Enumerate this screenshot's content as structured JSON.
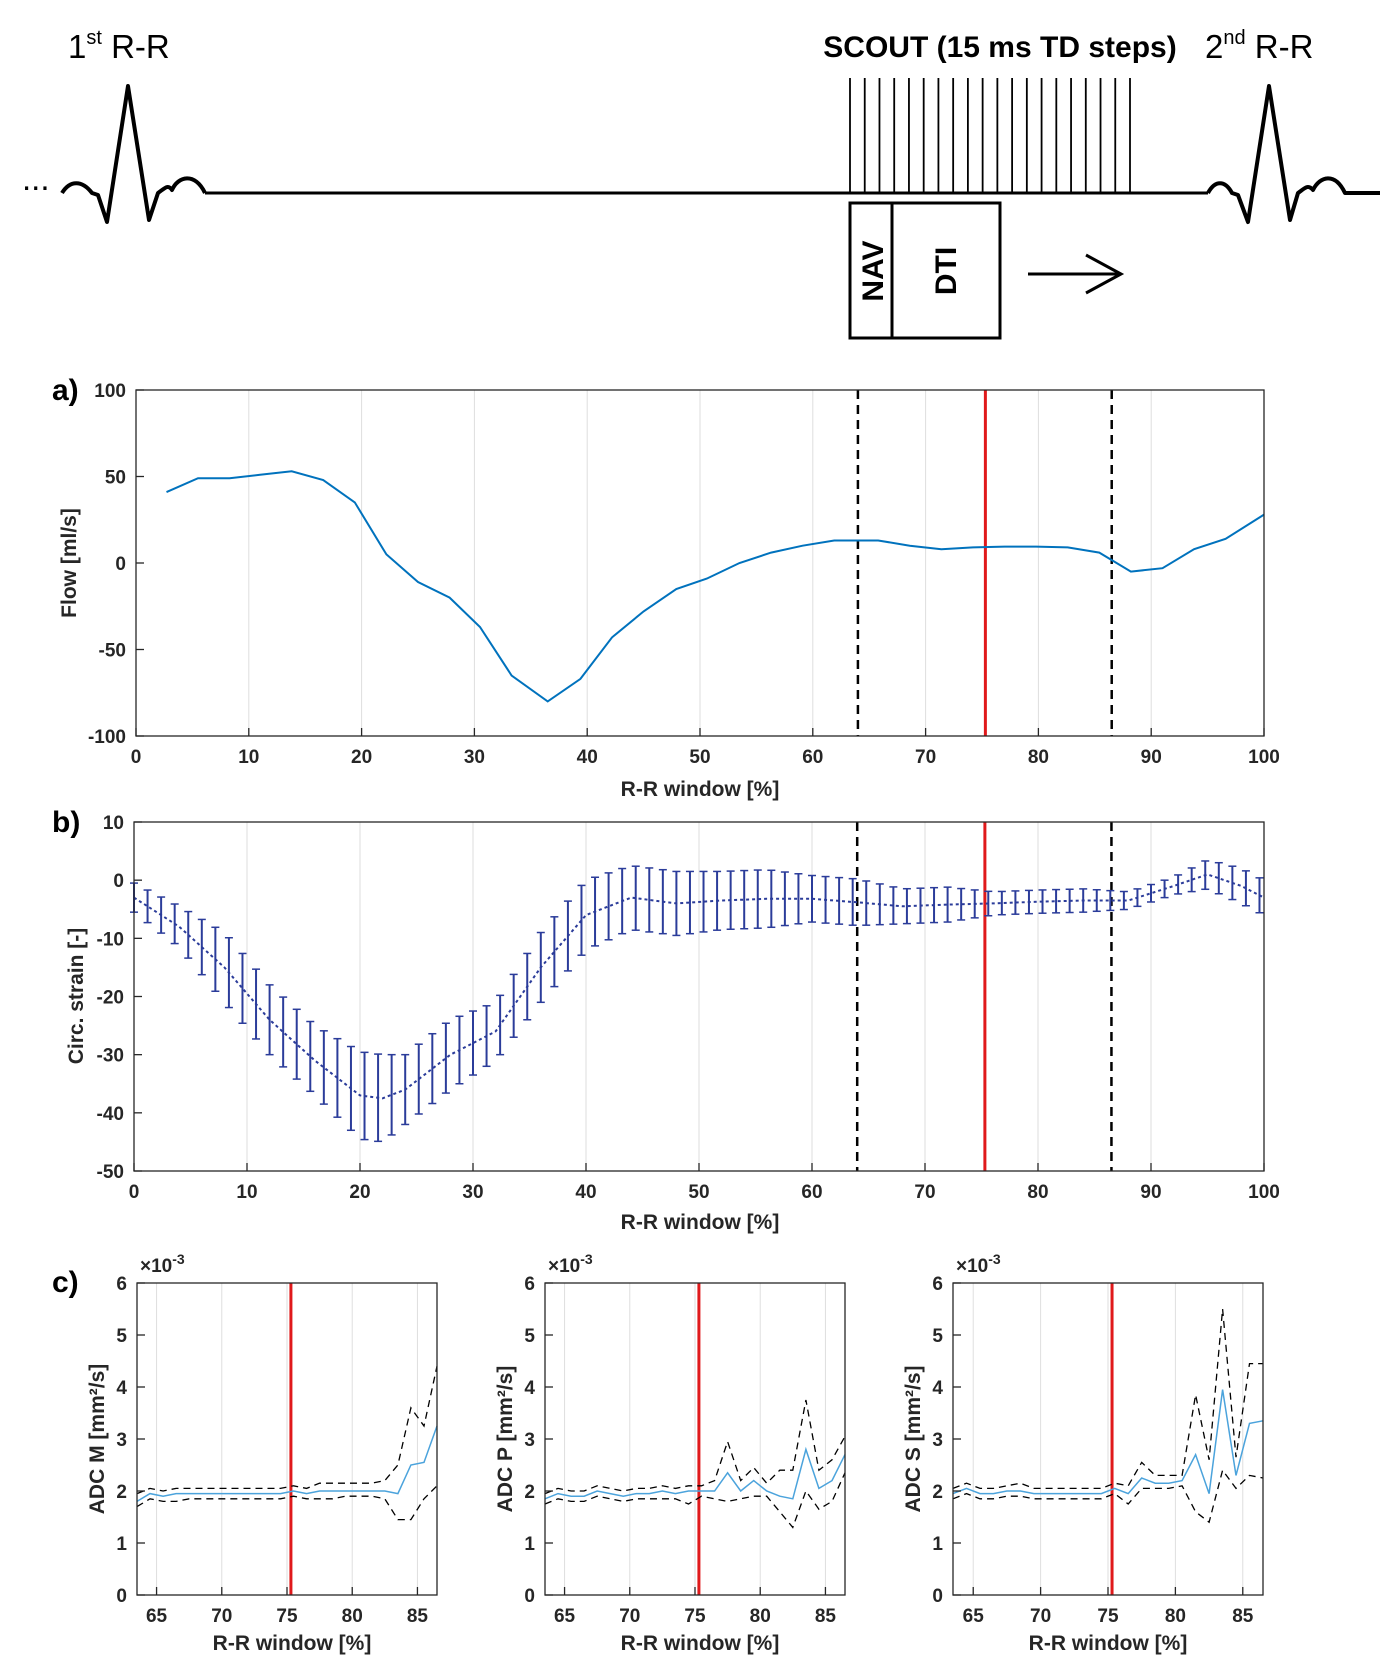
{
  "diagram": {
    "first_rr": {
      "main": "1",
      "sup": "st",
      "rest": " R-R"
    },
    "second_rr": {
      "main": "2",
      "sup": "nd",
      "rest": " R-R"
    },
    "scout_label": "SCOUT (15 ms TD steps)",
    "nav_label": "NAV",
    "dti_label": "DTI",
    "ellipsis": "..."
  },
  "colors": {
    "flow": "#0072bd",
    "strain": "#2b3c9a",
    "adc_mean": "#4ba3dc",
    "red_marker": "#e0191b",
    "dashed": "#000000",
    "grid": "#dedede"
  },
  "chart_data": [
    {
      "id": "a",
      "panel_label": "a)",
      "type": "line",
      "xlabel": "R-R window [%]",
      "ylabel": "Flow [ml/s]",
      "xlim": [
        0,
        100
      ],
      "ylim": [
        -100,
        100
      ],
      "xticks": [
        0,
        10,
        20,
        30,
        40,
        50,
        60,
        70,
        80,
        90,
        100
      ],
      "yticks": [
        -100,
        -50,
        0,
        50,
        100
      ],
      "vlines": [
        {
          "x": 64,
          "style": "dashed"
        },
        {
          "x": 75.3,
          "style": "red"
        },
        {
          "x": 86.5,
          "style": "dashed"
        }
      ],
      "series": [
        {
          "name": "Flow",
          "x": [
            2.7,
            5.5,
            8.3,
            11.0,
            13.8,
            16.6,
            19.4,
            22.2,
            25.0,
            27.8,
            30.5,
            33.3,
            36.5,
            39.4,
            42.2,
            45.0,
            47.9,
            50.6,
            53.5,
            56.3,
            59.1,
            61.9,
            64.7,
            65.8,
            68.6,
            71.4,
            74.2,
            77.0,
            79.8,
            82.6,
            85.4,
            88.2,
            91.0,
            93.8,
            96.6,
            100.0
          ],
          "y": [
            41,
            49,
            49,
            51,
            53,
            48,
            35,
            5,
            -11,
            -20,
            -37,
            -65,
            -80,
            -67,
            -43,
            -28,
            -15,
            -9,
            0,
            6,
            10,
            13,
            13,
            13,
            10,
            8,
            9,
            9.5,
            9.5,
            9,
            6,
            -5,
            -3,
            8,
            14,
            28
          ]
        }
      ]
    },
    {
      "id": "b",
      "panel_label": "b)",
      "type": "line",
      "xlabel": "R-R window [%]",
      "ylabel": "Circ. strain [-]",
      "xlim": [
        0,
        100
      ],
      "ylim": [
        -50,
        10
      ],
      "xticks": [
        0,
        10,
        20,
        30,
        40,
        50,
        60,
        70,
        80,
        90,
        100
      ],
      "yticks": [
        -50,
        -40,
        -30,
        -20,
        -10,
        0,
        10
      ],
      "vlines": [
        {
          "x": 64,
          "style": "dashed"
        },
        {
          "x": 75.3,
          "style": "red"
        },
        {
          "x": 86.5,
          "style": "dashed"
        }
      ],
      "series": [
        {
          "name": "Mean ± SD",
          "x": [
            0,
            4,
            8,
            12,
            16,
            20,
            22,
            24,
            28,
            32,
            36,
            40,
            44,
            48,
            52,
            56,
            60,
            64,
            68,
            72,
            76,
            80,
            84,
            88,
            92,
            95,
            98,
            100
          ],
          "y": [
            -3,
            -8,
            -15,
            -24,
            -31,
            -37,
            -37.5,
            -36,
            -30,
            -26,
            -15,
            -6,
            -3,
            -4,
            -3.5,
            -3.2,
            -3.2,
            -3.8,
            -4.5,
            -4.2,
            -4,
            -3.7,
            -3.5,
            -3.5,
            -1,
            1,
            -1,
            -3
          ],
          "sd": [
            2.5,
            3.5,
            6,
            6,
            6,
            7.5,
            7.5,
            6,
            6,
            5,
            6,
            6,
            5.5,
            5.5,
            5,
            5,
            4,
            4,
            3,
            3,
            2,
            2,
            2,
            1.5,
            1.5,
            2.5,
            3,
            3
          ]
        }
      ]
    },
    {
      "id": "c1",
      "panel_label": "c)",
      "type": "line",
      "xlabel": "R-R window [%]",
      "ylabel": "ADC M [mm²/s]",
      "exponent": "×10",
      "exponent_power": "-3",
      "xlim": [
        63.5,
        86.5
      ],
      "ylim": [
        0,
        6
      ],
      "xticks": [
        65,
        70,
        75,
        80,
        85
      ],
      "yticks": [
        0,
        1,
        2,
        3,
        4,
        5,
        6
      ],
      "vlines": [
        {
          "x": 75.3,
          "style": "red"
        }
      ],
      "x": [
        63.5,
        64.5,
        65.5,
        66.5,
        67.5,
        68.5,
        69.5,
        70.5,
        71.5,
        72.5,
        73.5,
        74.5,
        75.5,
        76.5,
        77.5,
        78.5,
        79.5,
        80.5,
        81.5,
        82.5,
        83.5,
        84.5,
        85.5,
        86.5
      ],
      "mean": [
        1.8,
        1.95,
        1.9,
        1.95,
        1.95,
        1.95,
        1.95,
        1.95,
        1.95,
        1.95,
        1.95,
        1.95,
        2.0,
        1.95,
        2.0,
        2.0,
        2.0,
        2.0,
        2.0,
        2.0,
        1.95,
        2.5,
        2.55,
        3.25
      ],
      "upper": [
        1.95,
        2.05,
        2.0,
        2.05,
        2.05,
        2.05,
        2.05,
        2.05,
        2.05,
        2.05,
        2.05,
        2.05,
        2.1,
        2.05,
        2.15,
        2.15,
        2.15,
        2.15,
        2.15,
        2.2,
        2.5,
        3.6,
        3.25,
        4.4
      ],
      "lower": [
        1.7,
        1.85,
        1.8,
        1.8,
        1.85,
        1.85,
        1.85,
        1.85,
        1.85,
        1.85,
        1.85,
        1.85,
        1.9,
        1.85,
        1.85,
        1.85,
        1.9,
        1.9,
        1.9,
        1.85,
        1.45,
        1.45,
        1.85,
        2.1
      ]
    },
    {
      "id": "c2",
      "panel_label": "",
      "type": "line",
      "xlabel": "R-R window [%]",
      "ylabel": "ADC P [mm²/s]",
      "exponent": "×10",
      "exponent_power": "-3",
      "xlim": [
        63.5,
        86.5
      ],
      "ylim": [
        0,
        6
      ],
      "xticks": [
        65,
        70,
        75,
        80,
        85
      ],
      "yticks": [
        0,
        1,
        2,
        3,
        4,
        5,
        6
      ],
      "vlines": [
        {
          "x": 75.3,
          "style": "red"
        }
      ],
      "x": [
        63.5,
        64.5,
        65.5,
        66.5,
        67.5,
        68.5,
        69.5,
        70.5,
        71.5,
        72.5,
        73.5,
        74.5,
        75.5,
        76.5,
        77.5,
        78.5,
        79.5,
        80.5,
        81.5,
        82.5,
        83.5,
        84.5,
        85.5,
        86.5
      ],
      "mean": [
        1.85,
        1.95,
        1.9,
        1.9,
        2.0,
        1.95,
        1.9,
        1.95,
        1.95,
        2.0,
        1.95,
        2.0,
        2.0,
        2.0,
        2.35,
        2.0,
        2.2,
        2.0,
        1.9,
        1.85,
        2.8,
        2.05,
        2.2,
        2.7
      ],
      "upper": [
        1.95,
        2.05,
        2.0,
        2.0,
        2.1,
        2.05,
        2.0,
        2.05,
        2.05,
        2.1,
        2.05,
        2.1,
        2.1,
        2.2,
        2.95,
        2.2,
        2.45,
        2.15,
        2.4,
        2.4,
        3.75,
        2.4,
        2.6,
        3.05
      ],
      "lower": [
        1.75,
        1.85,
        1.8,
        1.8,
        1.9,
        1.85,
        1.8,
        1.85,
        1.85,
        1.85,
        1.85,
        1.75,
        1.9,
        1.85,
        1.8,
        1.85,
        1.9,
        1.9,
        1.6,
        1.3,
        2.0,
        1.65,
        1.8,
        2.35
      ]
    },
    {
      "id": "c3",
      "panel_label": "",
      "type": "line",
      "xlabel": "R-R window [%]",
      "ylabel": "ADC S [mm²/s]",
      "exponent": "×10",
      "exponent_power": "-3",
      "xlim": [
        63.5,
        86.5
      ],
      "ylim": [
        0,
        6
      ],
      "xticks": [
        65,
        70,
        75,
        80,
        85
      ],
      "yticks": [
        0,
        1,
        2,
        3,
        4,
        5,
        6
      ],
      "vlines": [
        {
          "x": 75.3,
          "style": "red"
        }
      ],
      "x": [
        63.5,
        64.5,
        65.5,
        66.5,
        67.5,
        68.5,
        69.5,
        70.5,
        71.5,
        72.5,
        73.5,
        74.5,
        75.5,
        76.5,
        77.5,
        78.5,
        79.5,
        80.5,
        81.5,
        82.5,
        83.5,
        84.5,
        85.5,
        86.5
      ],
      "mean": [
        1.95,
        2.05,
        1.95,
        1.95,
        2.0,
        2.0,
        1.95,
        1.95,
        1.95,
        1.95,
        1.95,
        1.95,
        2.05,
        1.95,
        2.25,
        2.15,
        2.15,
        2.2,
        2.7,
        1.95,
        3.95,
        2.3,
        3.3,
        3.35
      ],
      "upper": [
        2.05,
        2.15,
        2.05,
        2.05,
        2.1,
        2.15,
        2.05,
        2.05,
        2.05,
        2.05,
        2.05,
        2.05,
        2.15,
        2.1,
        2.55,
        2.3,
        2.3,
        2.3,
        3.85,
        2.6,
        5.5,
        2.65,
        4.45,
        4.45
      ],
      "lower": [
        1.85,
        1.95,
        1.85,
        1.85,
        1.9,
        1.9,
        1.85,
        1.85,
        1.85,
        1.85,
        1.85,
        1.85,
        1.95,
        1.75,
        2.05,
        2.05,
        2.05,
        2.1,
        1.6,
        1.4,
        2.4,
        2.05,
        2.3,
        2.25
      ]
    }
  ]
}
